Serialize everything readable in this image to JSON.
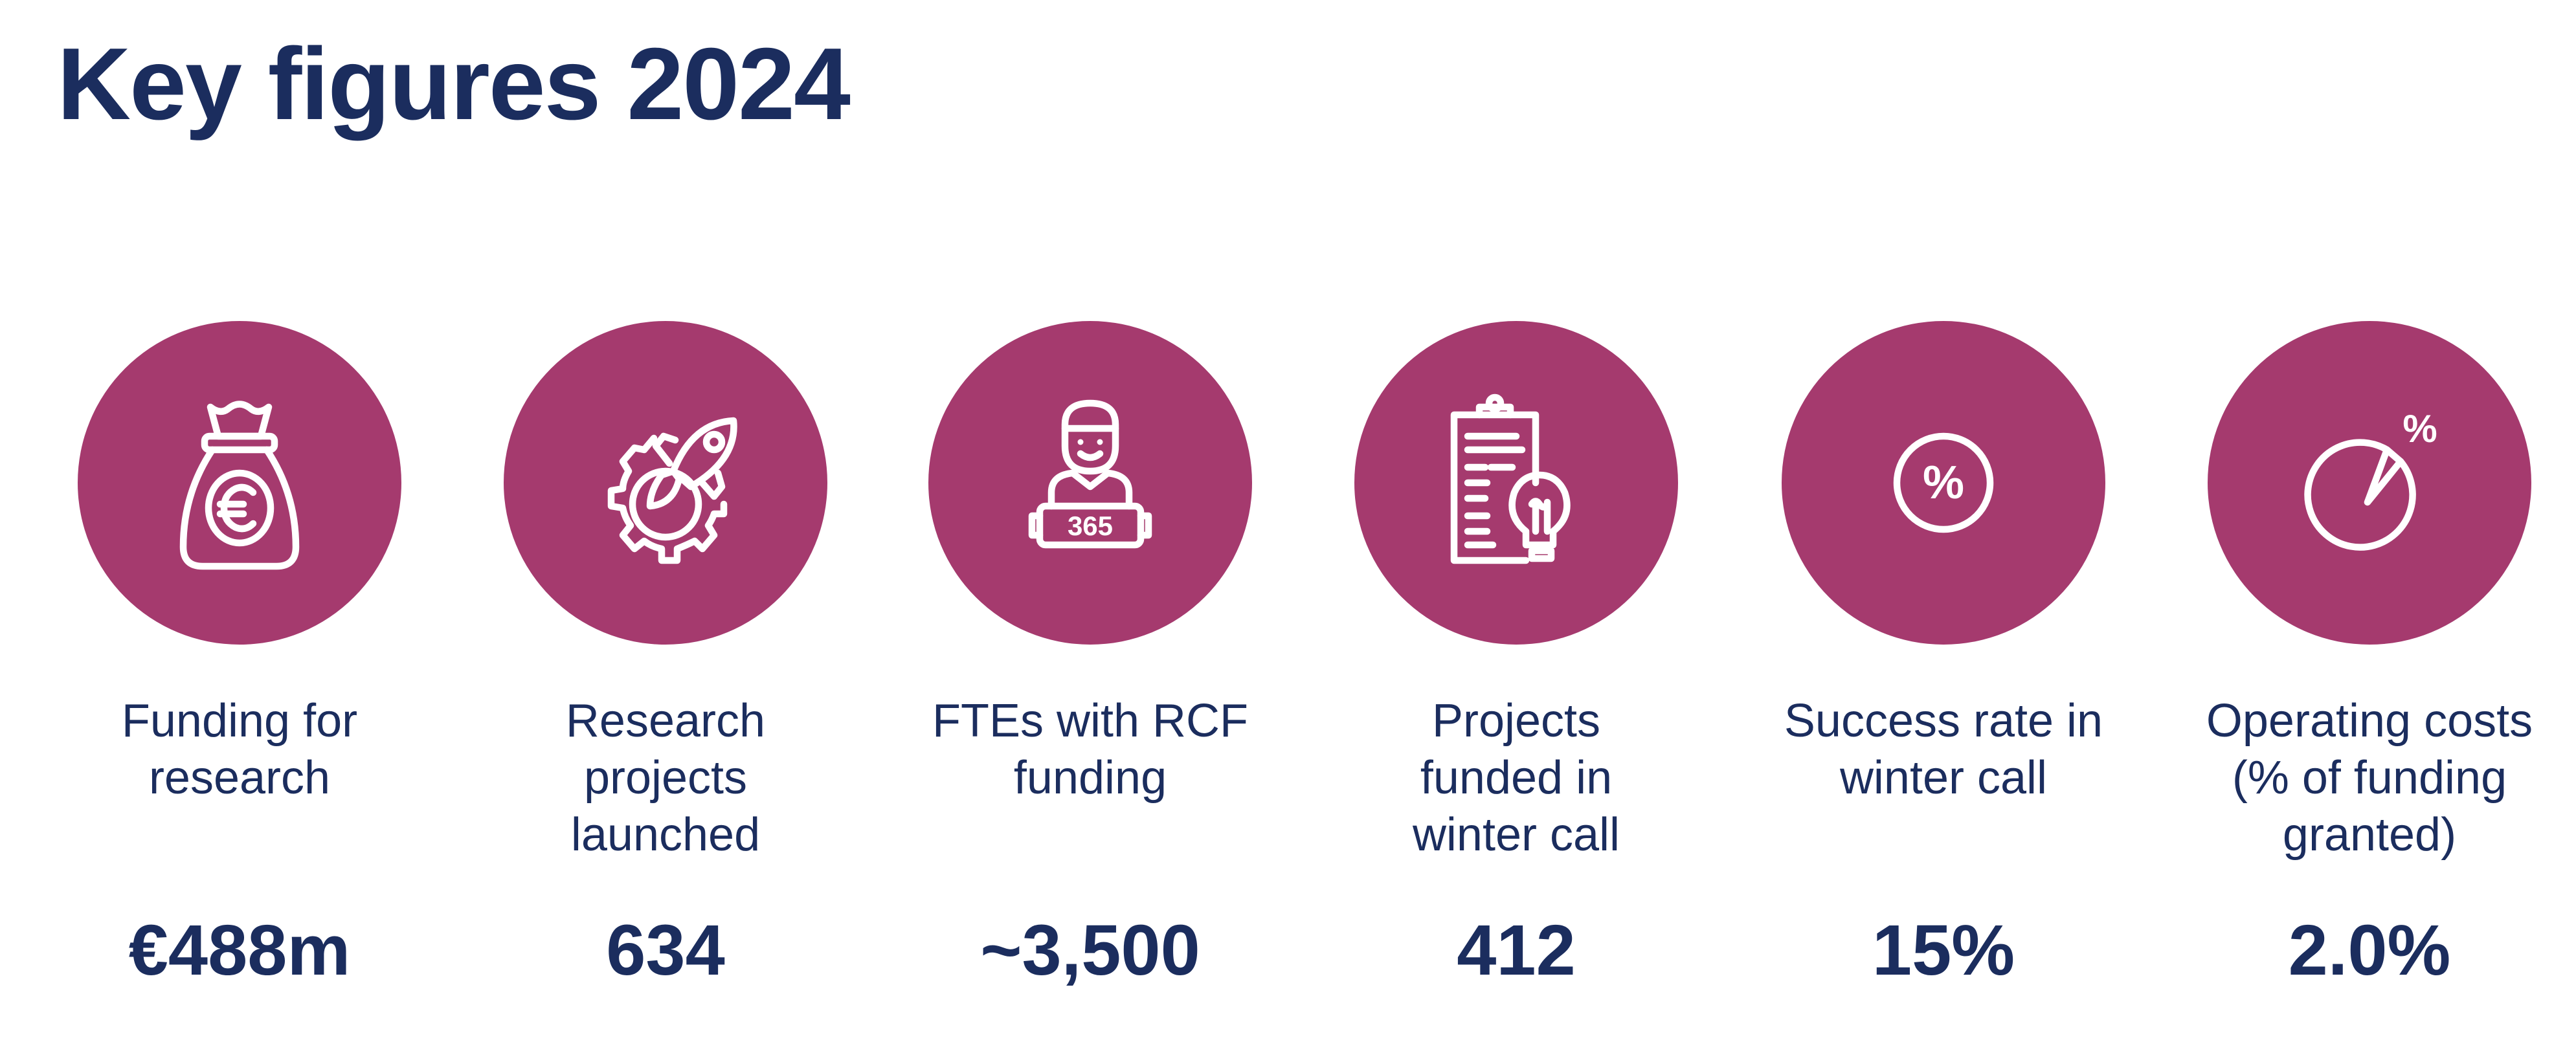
{
  "title": "Key figures 2024",
  "colors": {
    "circle": "#a53a6e",
    "text": "#1b2d5e",
    "icon": "#ffffff"
  },
  "figures": [
    {
      "icon": "money-bag-euro-icon",
      "label_lines": [
        "Funding for",
        "research"
      ],
      "value": "€488m"
    },
    {
      "icon": "rocket-gear-icon",
      "label_lines": [
        "Research",
        "projects",
        "launched"
      ],
      "value": "634"
    },
    {
      "icon": "person-holding-365-sign-icon",
      "icon_text": "365",
      "label_lines": [
        "FTEs with RCF",
        "funding"
      ],
      "value": "~3,500"
    },
    {
      "icon": "clipboard-lightbulb-icon",
      "label_lines": [
        "Projects",
        "funded in",
        "winter call"
      ],
      "value": "412"
    },
    {
      "icon": "percent-circle-icon",
      "icon_text": "%",
      "label_lines": [
        "Success rate in",
        "winter call"
      ],
      "value": "15%"
    },
    {
      "icon": "pie-slice-percent-icon",
      "icon_text": "%",
      "label_lines": [
        "Operating costs",
        "(% of funding",
        "granted)"
      ],
      "value": "2.0%"
    }
  ]
}
